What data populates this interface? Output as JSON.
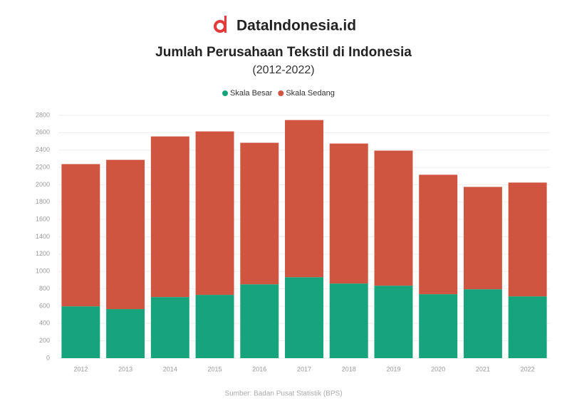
{
  "brand": "DataIndonesia.id",
  "chart_data": {
    "type": "stacked_bar",
    "title": "Jumlah Perusahaan Tekstil di Indonesia",
    "subtitle": "(2012-2022)",
    "categories": [
      "2012",
      "2013",
      "2014",
      "2015",
      "2016",
      "2017",
      "2018",
      "2019",
      "2020",
      "2021",
      "2022"
    ],
    "series": [
      {
        "name": "Skala Besar",
        "color": "#17a37b",
        "values": [
          598,
          566,
          705,
          730,
          852,
          934,
          861,
          836,
          738,
          795,
          713
        ]
      },
      {
        "name": "Skala Sedang",
        "color": "#cf5540",
        "values": [
          1640,
          1721,
          1852,
          1885,
          1632,
          1812,
          1614,
          1557,
          1377,
          1180,
          1312
        ]
      }
    ],
    "ylim": [
      0,
      2800
    ],
    "yticks": [
      0,
      200,
      400,
      600,
      800,
      1000,
      1200,
      1400,
      1600,
      1800,
      2000,
      2200,
      2400,
      2600,
      2800
    ],
    "grid": true,
    "legend": "top",
    "source": "Sumber: Badan Pusat Statistik (BPS)"
  }
}
